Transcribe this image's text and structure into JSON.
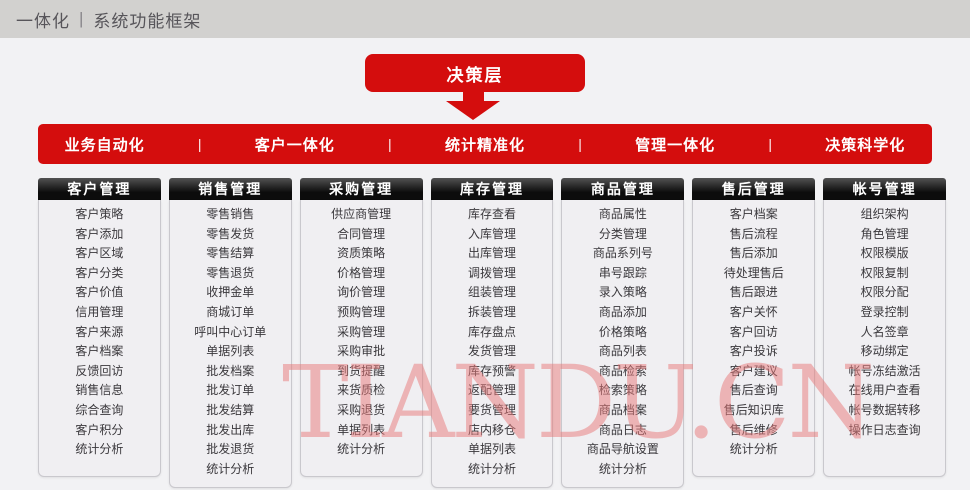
{
  "page": {
    "title_prefix": "一体化",
    "title_separator": "|",
    "title": "系统功能框架"
  },
  "decision_layer": {
    "label": "决策层"
  },
  "strategy_bar": {
    "separator": "|",
    "items": [
      "业务自动化",
      "客户一体化",
      "统计精准化",
      "管理一体化",
      "决策科学化"
    ]
  },
  "columns": [
    {
      "title": "客户管理",
      "items": [
        "客户策略",
        "客户添加",
        "客户区域",
        "客户分类",
        "客户价值",
        "信用管理",
        "客户来源",
        "客户档案",
        "反馈回访",
        "销售信息",
        "综合查询",
        "客户积分",
        "统计分析"
      ]
    },
    {
      "title": "销售管理",
      "items": [
        "零售销售",
        "零售发货",
        "零售结算",
        "零售退货",
        "收押金单",
        "商城订单",
        "呼叫中心订单",
        "单据列表",
        "批发档案",
        "批发订单",
        "批发结算",
        "批发出库",
        "批发退货",
        "统计分析"
      ]
    },
    {
      "title": "采购管理",
      "items": [
        "供应商管理",
        "合同管理",
        "资质策略",
        "价格管理",
        "询价管理",
        "预购管理",
        "采购管理",
        "采购审批",
        "到货提醒",
        "来货质检",
        "采购退货",
        "单据列表",
        "统计分析"
      ]
    },
    {
      "title": "库存管理",
      "items": [
        "库存查看",
        "入库管理",
        "出库管理",
        "调拨管理",
        "组装管理",
        "拆装管理",
        "库存盘点",
        "发货管理",
        "库存预警",
        "返配管理",
        "要货管理",
        "店内移仓",
        "单据列表",
        "统计分析"
      ]
    },
    {
      "title": "商品管理",
      "items": [
        "商品属性",
        "分类管理",
        "商品系列号",
        "串号跟踪",
        "录入策略",
        "商品添加",
        "价格策略",
        "商品列表",
        "商品检索",
        "检索策略",
        "商品档案",
        "商品日志",
        "商品导航设置",
        "统计分析"
      ]
    },
    {
      "title": "售后管理",
      "items": [
        "客户档案",
        "售后流程",
        "售后添加",
        "待处理售后",
        "售后跟进",
        "客户关怀",
        "客户回访",
        "客户投诉",
        "客户建议",
        "售后查询",
        "售后知识库",
        "售后维修",
        "统计分析"
      ]
    },
    {
      "title": "帐号管理",
      "items": [
        "组织架构",
        "角色管理",
        "权限模版",
        "权限复制",
        "权限分配",
        "登录控制",
        "人名签章",
        "移动绑定",
        "帐号冻结激活",
        "在线用户查看",
        "帐号数据转移",
        "操作日志查询"
      ]
    }
  ],
  "watermark": {
    "text": "TIANDU.CN"
  },
  "colors": {
    "accent_red": "#d40d0d",
    "column_header_black": "#0c0c0c",
    "topbar_gray": "#d2d1cf",
    "panel_bg": "#f0eff2",
    "watermark_pink": "#e87878"
  }
}
